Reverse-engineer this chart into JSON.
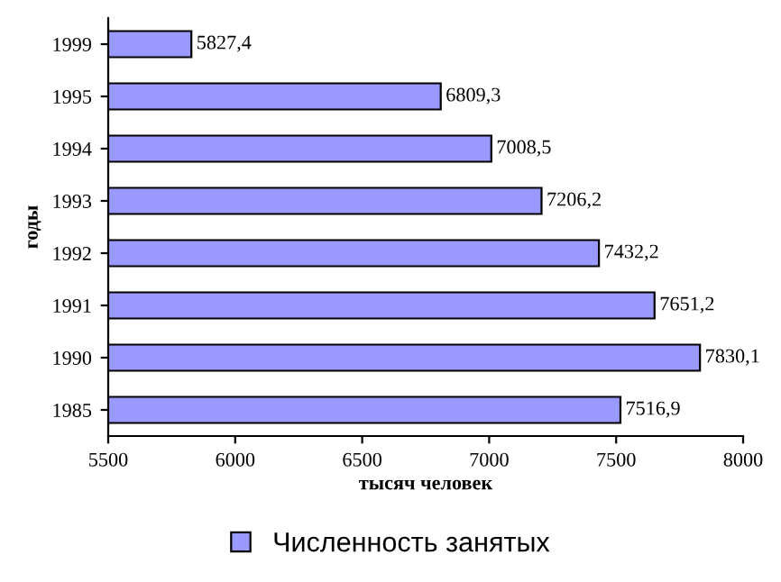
{
  "chart_data": {
    "type": "bar",
    "orientation": "horizontal",
    "categories": [
      "1999",
      "1995",
      "1994",
      "1993",
      "1992",
      "1991",
      "1990",
      "1985"
    ],
    "series": [
      {
        "name": "Численность занятых",
        "color": "#9999ff",
        "values": [
          5827.4,
          6809.3,
          7008.5,
          7206.2,
          7432.2,
          7651.2,
          7830.1,
          7516.9
        ]
      }
    ],
    "value_labels": [
      "5827,4",
      "6809,3",
      "7008,5",
      "7206,2",
      "7432,2",
      "7651,2",
      "7830,1",
      "7516,9"
    ],
    "xlim": [
      5500,
      8000
    ],
    "xticks": [
      5500,
      6000,
      6500,
      7000,
      7500,
      8000
    ],
    "xlabel": "тысяч человек",
    "ylabel": "годы",
    "grid": false,
    "legend": "bottom"
  }
}
